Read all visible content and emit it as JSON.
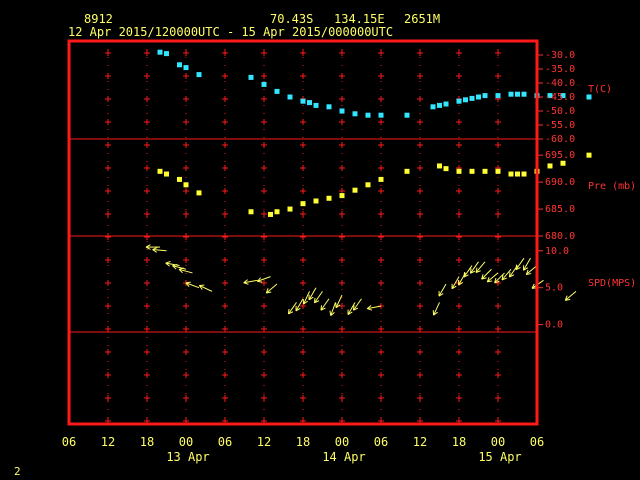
{
  "header": {
    "station_id": "8912",
    "latitude": "70.43S",
    "longitude": "134.15E",
    "elevation": "2651M",
    "date_range": "12 Apr 2015/120000UTC - 15 Apr 2015/000000UTC"
  },
  "page_number": "2",
  "colors": {
    "frame": "#ff1a1a",
    "axis_text": "#ff3333",
    "time_text": "#ffff66",
    "temperature": "#33e6ff",
    "pressure": "#ffff33",
    "wind": "#ffff66"
  },
  "chart_data": [
    {
      "type": "scatter",
      "panel": "temperature",
      "ylabel": "T(C)",
      "ylim": [
        -60,
        -25
      ],
      "yticks": [
        "-30.0",
        "-35.0",
        "-40.0",
        "-45.0",
        "-50.0",
        "-55.0",
        "-60.0"
      ],
      "x_hours": [
        14,
        15,
        17,
        18,
        20,
        28,
        30,
        32,
        34,
        36,
        37,
        38,
        40,
        42,
        44,
        46,
        48,
        52,
        56,
        57,
        58,
        60,
        61,
        62,
        63,
        64,
        66,
        68,
        69,
        70,
        72,
        74,
        76,
        80
      ],
      "values": [
        -29,
        -29.5,
        -33.5,
        -34.5,
        -37,
        -38,
        -40.5,
        -43,
        -45,
        -46.5,
        -47,
        -48,
        -48.5,
        -50,
        -51,
        -51.5,
        -51.5,
        -51.5,
        -48.5,
        -48,
        -47.5,
        -46.5,
        -46,
        -45.5,
        -45,
        -44.5,
        -44.5,
        -44,
        -44,
        -44,
        -44.5,
        -44.5,
        -44.5,
        -45
      ]
    },
    {
      "type": "scatter",
      "panel": "pressure",
      "ylabel": "Pre (mb)",
      "ylim": [
        680,
        698
      ],
      "yticks": [
        "695.0",
        "690.0",
        "685.0",
        "680.0"
      ],
      "x_hours": [
        14,
        15,
        17,
        18,
        20,
        28,
        31,
        32,
        34,
        36,
        38,
        40,
        42,
        44,
        46,
        48,
        52,
        57,
        58,
        60,
        62,
        64,
        66,
        68,
        69,
        70,
        72,
        74,
        76,
        80
      ],
      "values": [
        692,
        691.5,
        690.5,
        689.5,
        688,
        684.5,
        684,
        684.5,
        685,
        686,
        686.5,
        687,
        687.5,
        688.5,
        689.5,
        690.5,
        692,
        693,
        692.5,
        692,
        692,
        692,
        692,
        691.5,
        691.5,
        691.5,
        692,
        693,
        693.5,
        695
      ]
    },
    {
      "type": "vector",
      "panel": "wind",
      "ylabel": "SPD(MPS)",
      "ylim": [
        -1,
        12
      ],
      "yticks": [
        "10.0",
        "5.0",
        "0.0"
      ],
      "x_hours": [
        14,
        15,
        17,
        18,
        19,
        20,
        22,
        29,
        31,
        32,
        35,
        36,
        37,
        38,
        39,
        40,
        41,
        42,
        44,
        45,
        48,
        57,
        58,
        60,
        61,
        62,
        63,
        64,
        65,
        66,
        67,
        68,
        69,
        70,
        71,
        72,
        73,
        78
      ],
      "speeds": [
        10.5,
        10,
        8,
        7.5,
        7,
        5,
        4.5,
        6,
        6.5,
        5.5,
        3,
        3.5,
        4.5,
        5,
        4.5,
        3.5,
        3,
        4,
        3,
        3.5,
        2.5,
        3,
        5.5,
        6.5,
        7,
        8,
        8.5,
        8.5,
        7.5,
        7,
        7,
        7.5,
        8,
        9,
        9,
        8,
        6,
        4.5
      ],
      "directions_deg": [
        270,
        275,
        280,
        285,
        285,
        290,
        295,
        260,
        250,
        230,
        215,
        210,
        205,
        210,
        215,
        215,
        200,
        205,
        210,
        215,
        260,
        205,
        210,
        210,
        210,
        215,
        215,
        220,
        225,
        230,
        225,
        220,
        215,
        215,
        210,
        230,
        235,
        230
      ]
    }
  ],
  "time_axis": {
    "hour_labels": [
      "06",
      "12",
      "18",
      "00",
      "06",
      "12",
      "18",
      "00",
      "06",
      "12",
      "18",
      "00",
      "06"
    ],
    "day_labels": [
      "13 Apr",
      "14 Apr",
      "15 Apr"
    ],
    "start_hour_label": "06"
  }
}
